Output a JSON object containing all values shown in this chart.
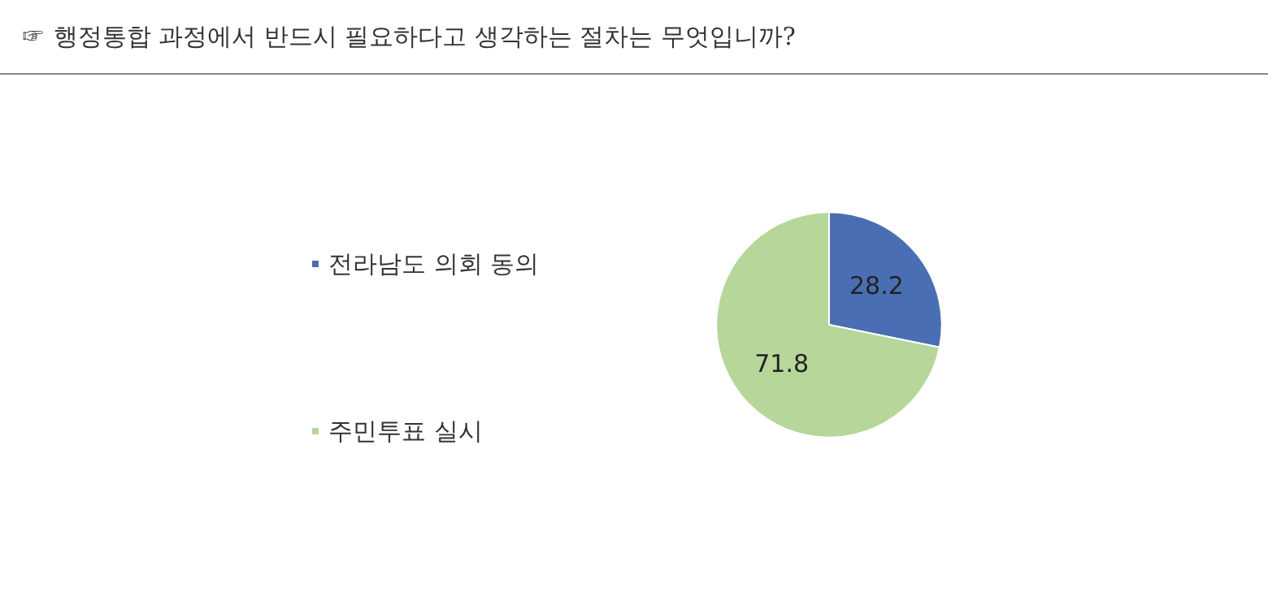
{
  "chart_data": {
    "type": "pie",
    "title": "☞ 행정통합 과정에서 반드시 필요하다고 생각하는 절차는 무엇입니까?",
    "categories": [
      "전라남도 의회 동의",
      "주민투표 실시"
    ],
    "values": [
      28.2,
      71.8
    ],
    "colors": [
      "#4a6eb3",
      "#b6d69a"
    ],
    "data_labels": true,
    "legend": "left"
  }
}
